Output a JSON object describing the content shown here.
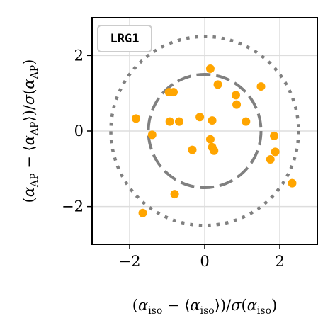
{
  "chart_data": {
    "type": "scatter",
    "legend_label": "LRG1",
    "legend_placement": "top-left",
    "xlabel": "(α_iso − ⟨α_iso⟩)/σ(α_iso)",
    "ylabel": "(α_AP − ⟨α_AP⟩)/σ(α_AP)",
    "xlim": [
      -3,
      3
    ],
    "ylim": [
      -3,
      3
    ],
    "xticks": [
      -2,
      0,
      2
    ],
    "yticks": [
      -2,
      0,
      2
    ],
    "xtick_labels": [
      "−2",
      "0",
      "2"
    ],
    "ytick_labels": [
      "−2",
      "0",
      "2"
    ],
    "grid": true,
    "circles": [
      {
        "radius": 1.5,
        "style": "dashed",
        "color": "#808080"
      },
      {
        "radius": 2.5,
        "style": "dotted",
        "color": "#808080"
      }
    ],
    "marker_color": "#FFA500",
    "points": [
      {
        "x": 0.15,
        "y": 1.65
      },
      {
        "x": 0.35,
        "y": 1.23
      },
      {
        "x": -0.95,
        "y": 1.03
      },
      {
        "x": -0.83,
        "y": 1.03
      },
      {
        "x": 0.83,
        "y": 0.95
      },
      {
        "x": 1.5,
        "y": 1.18
      },
      {
        "x": 0.85,
        "y": 0.7
      },
      {
        "x": -1.83,
        "y": 0.33
      },
      {
        "x": -0.93,
        "y": 0.25
      },
      {
        "x": -0.68,
        "y": 0.25
      },
      {
        "x": -0.13,
        "y": 0.37
      },
      {
        "x": 0.2,
        "y": 0.28
      },
      {
        "x": 1.1,
        "y": 0.25
      },
      {
        "x": -1.4,
        "y": -0.1
      },
      {
        "x": 0.15,
        "y": -0.22
      },
      {
        "x": 1.85,
        "y": -0.13
      },
      {
        "x": -0.33,
        "y": -0.5
      },
      {
        "x": 0.2,
        "y": -0.43
      },
      {
        "x": 0.25,
        "y": -0.52
      },
      {
        "x": 1.88,
        "y": -0.55
      },
      {
        "x": 1.75,
        "y": -0.75
      },
      {
        "x": -0.8,
        "y": -1.67
      },
      {
        "x": 2.33,
        "y": -1.38
      },
      {
        "x": -1.65,
        "y": -2.17
      }
    ]
  }
}
